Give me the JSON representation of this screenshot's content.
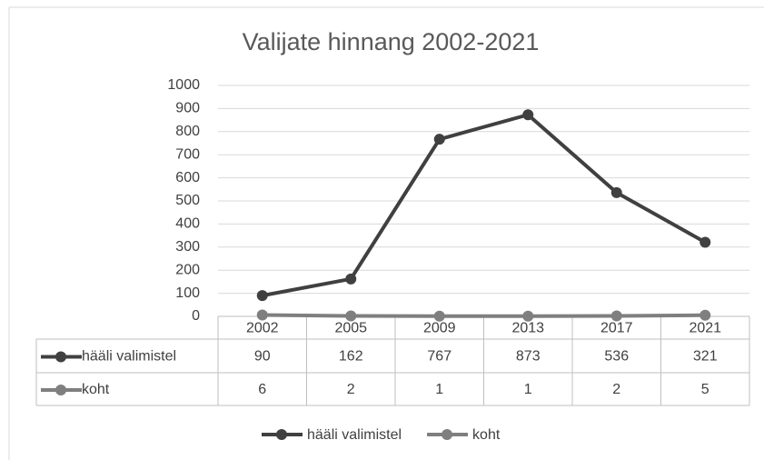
{
  "chart_data": {
    "type": "line",
    "title": "Valijate hinnang 2002-2021",
    "categories": [
      "2002",
      "2005",
      "2009",
      "2013",
      "2017",
      "2021"
    ],
    "series": [
      {
        "name": "hääli valimistel",
        "color": "#404040",
        "values": [
          90,
          162,
          767,
          873,
          536,
          321
        ]
      },
      {
        "name": "koht",
        "color": "#7f7f7f",
        "values": [
          6,
          2,
          1,
          1,
          2,
          5
        ]
      }
    ],
    "ylim": [
      0,
      1000
    ],
    "yticks": [
      0,
      100,
      200,
      300,
      400,
      500,
      600,
      700,
      800,
      900,
      1000
    ],
    "grid": true,
    "legend": "bottom",
    "data_table": true
  }
}
